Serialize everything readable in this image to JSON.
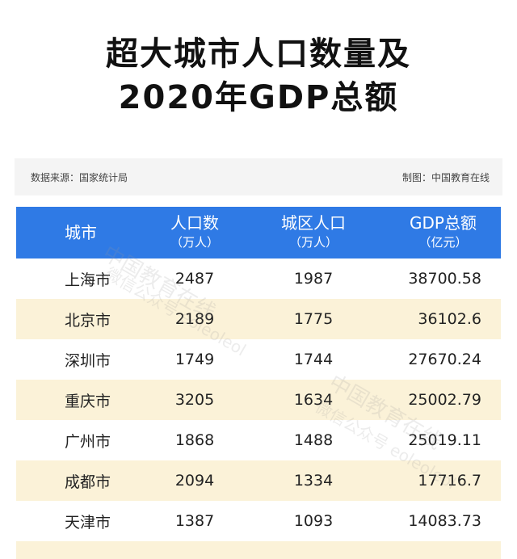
{
  "title_line1": "超大城市人口数量及",
  "title_line2": "2020年GDP总额",
  "source": "数据来源：国家统计局",
  "credit": "制图：中国教育在线",
  "headers": [
    {
      "main": "城市",
      "unit": ""
    },
    {
      "main": "人口数",
      "unit": "（万人）"
    },
    {
      "main": "城区人口",
      "unit": "（万人）"
    },
    {
      "main": "GDP总额",
      "unit": "（亿元）"
    }
  ],
  "rows": [
    [
      "上海市",
      "2487",
      "1987",
      "38700.58"
    ],
    [
      "北京市",
      "2189",
      "1775",
      "36102.6"
    ],
    [
      "深圳市",
      "1749",
      "1744",
      "27670.24"
    ],
    [
      "重庆市",
      "3205",
      "1634",
      "25002.79"
    ],
    [
      "广州市",
      "1868",
      "1488",
      "25019.11"
    ],
    [
      "成都市",
      "2094",
      "1334",
      "17716.7"
    ],
    [
      "天津市",
      "1387",
      "1093",
      "14083.73"
    ]
  ],
  "watermark": {
    "brand": "中国教育在线",
    "channel": "微信公众号 eoleoleol"
  },
  "colors": {
    "header_bg": "#2f7ae5",
    "stripe_bg": "#fbf2d8",
    "source_bg": "#f4f4f4"
  }
}
